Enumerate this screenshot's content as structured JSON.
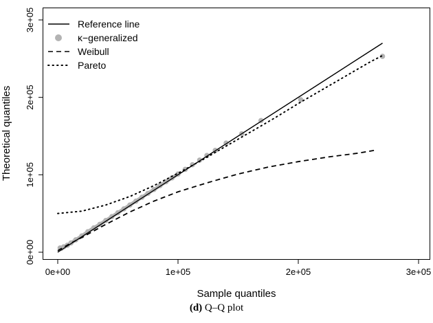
{
  "chart_data": {
    "type": "scatter",
    "xlabel": "Sample quantiles",
    "ylabel": "Theoretical quantiles",
    "xlim": [
      -5000,
      315000
    ],
    "ylim": [
      -5000,
      305000
    ],
    "x_ticks": [
      0,
      100000,
      200000,
      300000
    ],
    "x_tick_labels": [
      "0e+00",
      "1e+05",
      "2e+05",
      "3e+05"
    ],
    "y_ticks": [
      0,
      100000,
      200000,
      300000
    ],
    "y_tick_labels": [
      "0e+00",
      "1e+05",
      "2e+05",
      "3e+05"
    ],
    "legend_position": "top-left",
    "legend": [
      "Reference line",
      "κ−generalized",
      "Weibull",
      "Pareto"
    ],
    "series": [
      {
        "name": "Reference line",
        "style": "solid",
        "color": "#000000",
        "x": [
          0,
          270000
        ],
        "y": [
          0,
          270000
        ]
      },
      {
        "name": "κ−generalized",
        "style": "points",
        "color": "#b3b3b3",
        "x": [
          2000,
          3000,
          5000,
          8000,
          11000,
          15000,
          20000,
          25000,
          30000,
          35000,
          40000,
          45000,
          50000,
          55000,
          60000,
          65000,
          70000,
          75000,
          80000,
          85000,
          90000,
          95000,
          100000,
          106000,
          112000,
          118000,
          124000,
          131000,
          140000,
          153000,
          169000,
          202000,
          270000
        ],
        "y": [
          5500,
          5000,
          7000,
          9000,
          12000,
          16000,
          21000,
          26500,
          31500,
          36000,
          41000,
          46000,
          51000,
          56000,
          61000,
          66000,
          71000,
          76000,
          81000,
          86000,
          91000,
          96000,
          101000,
          107000,
          113000,
          119000,
          125000,
          131500,
          141000,
          153000,
          170000,
          197000,
          253000
        ]
      },
      {
        "name": "Weibull",
        "style": "dashed",
        "color": "#000000",
        "x": [
          0,
          10000,
          20000,
          40000,
          60000,
          80000,
          100000,
          125000,
          150000,
          175000,
          200000,
          225000,
          250000,
          265000
        ],
        "y": [
          2000,
          11000,
          19000,
          36000,
          52000,
          66000,
          78000,
          90000,
          101000,
          110000,
          117000,
          123000,
          128000,
          132000
        ]
      },
      {
        "name": "Pareto",
        "style": "dotted",
        "color": "#000000",
        "x": [
          0,
          20000,
          40000,
          60000,
          80000,
          100000,
          120000,
          140000,
          160000,
          180000,
          200000,
          220000,
          240000,
          260000,
          270000
        ],
        "y": [
          50000,
          53000,
          61000,
          72000,
          86000,
          102000,
          119000,
          137000,
          155000,
          173000,
          192000,
          210000,
          228000,
          246000,
          254000
        ]
      }
    ]
  },
  "caption": {
    "label": "(d)",
    "text": "Q–Q plot"
  }
}
